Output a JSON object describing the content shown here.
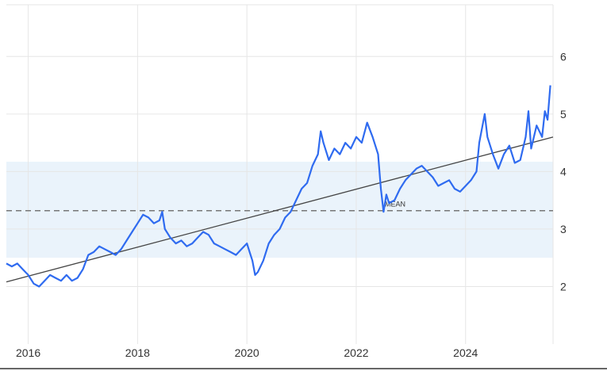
{
  "chart_data": {
    "type": "line",
    "xlabel": "",
    "ylabel": "",
    "x_ticks": [
      "2016",
      "2018",
      "2020",
      "2022",
      "2024"
    ],
    "y_ticks": [
      "2",
      "3",
      "4",
      "5",
      "6"
    ],
    "xlim": [
      2015.6,
      2025.6
    ],
    "ylim": [
      1.0,
      6.9
    ],
    "grid": true,
    "y_axis_position": "right",
    "band": {
      "lower": 2.5,
      "upper": 4.17
    },
    "mean": {
      "label": "MEAN",
      "value": 3.32
    },
    "trend": {
      "start": [
        2015.6,
        2.08
      ],
      "end": [
        2025.6,
        4.6
      ]
    },
    "series": [
      {
        "color": "#2f6bf0",
        "points": [
          [
            2015.6,
            2.4
          ],
          [
            2015.7,
            2.35
          ],
          [
            2015.8,
            2.4
          ],
          [
            2015.9,
            2.3
          ],
          [
            2016.0,
            2.2
          ],
          [
            2016.1,
            2.05
          ],
          [
            2016.2,
            2.0
          ],
          [
            2016.3,
            2.1
          ],
          [
            2016.4,
            2.2
          ],
          [
            2016.5,
            2.15
          ],
          [
            2016.6,
            2.1
          ],
          [
            2016.7,
            2.2
          ],
          [
            2016.8,
            2.1
          ],
          [
            2016.9,
            2.15
          ],
          [
            2017.0,
            2.3
          ],
          [
            2017.1,
            2.55
          ],
          [
            2017.2,
            2.6
          ],
          [
            2017.3,
            2.7
          ],
          [
            2017.4,
            2.65
          ],
          [
            2017.5,
            2.6
          ],
          [
            2017.6,
            2.55
          ],
          [
            2017.7,
            2.65
          ],
          [
            2017.8,
            2.8
          ],
          [
            2017.9,
            2.95
          ],
          [
            2018.0,
            3.1
          ],
          [
            2018.1,
            3.25
          ],
          [
            2018.2,
            3.2
          ],
          [
            2018.3,
            3.1
          ],
          [
            2018.4,
            3.15
          ],
          [
            2018.45,
            3.3
          ],
          [
            2018.5,
            3.0
          ],
          [
            2018.6,
            2.85
          ],
          [
            2018.7,
            2.75
          ],
          [
            2018.8,
            2.8
          ],
          [
            2018.9,
            2.7
          ],
          [
            2019.0,
            2.75
          ],
          [
            2019.1,
            2.85
          ],
          [
            2019.2,
            2.95
          ],
          [
            2019.3,
            2.9
          ],
          [
            2019.4,
            2.75
          ],
          [
            2019.5,
            2.7
          ],
          [
            2019.6,
            2.65
          ],
          [
            2019.7,
            2.6
          ],
          [
            2019.8,
            2.55
          ],
          [
            2019.9,
            2.65
          ],
          [
            2020.0,
            2.75
          ],
          [
            2020.05,
            2.6
          ],
          [
            2020.1,
            2.45
          ],
          [
            2020.15,
            2.2
          ],
          [
            2020.2,
            2.25
          ],
          [
            2020.3,
            2.45
          ],
          [
            2020.4,
            2.75
          ],
          [
            2020.5,
            2.9
          ],
          [
            2020.6,
            3.0
          ],
          [
            2020.7,
            3.2
          ],
          [
            2020.8,
            3.3
          ],
          [
            2020.9,
            3.5
          ],
          [
            2021.0,
            3.7
          ],
          [
            2021.1,
            3.8
          ],
          [
            2021.2,
            4.1
          ],
          [
            2021.3,
            4.3
          ],
          [
            2021.35,
            4.7
          ],
          [
            2021.4,
            4.5
          ],
          [
            2021.5,
            4.2
          ],
          [
            2021.6,
            4.4
          ],
          [
            2021.7,
            4.3
          ],
          [
            2021.8,
            4.5
          ],
          [
            2021.9,
            4.4
          ],
          [
            2022.0,
            4.6
          ],
          [
            2022.1,
            4.5
          ],
          [
            2022.2,
            4.85
          ],
          [
            2022.3,
            4.6
          ],
          [
            2022.4,
            4.3
          ],
          [
            2022.45,
            3.7
          ],
          [
            2022.5,
            3.3
          ],
          [
            2022.55,
            3.6
          ],
          [
            2022.6,
            3.45
          ],
          [
            2022.7,
            3.5
          ],
          [
            2022.8,
            3.7
          ],
          [
            2022.9,
            3.85
          ],
          [
            2023.0,
            3.95
          ],
          [
            2023.1,
            4.05
          ],
          [
            2023.2,
            4.1
          ],
          [
            2023.3,
            4.0
          ],
          [
            2023.4,
            3.9
          ],
          [
            2023.5,
            3.75
          ],
          [
            2023.6,
            3.8
          ],
          [
            2023.7,
            3.85
          ],
          [
            2023.8,
            3.7
          ],
          [
            2023.9,
            3.65
          ],
          [
            2024.0,
            3.75
          ],
          [
            2024.1,
            3.85
          ],
          [
            2024.2,
            4.0
          ],
          [
            2024.25,
            4.5
          ],
          [
            2024.35,
            5.0
          ],
          [
            2024.4,
            4.6
          ],
          [
            2024.5,
            4.3
          ],
          [
            2024.6,
            4.05
          ],
          [
            2024.7,
            4.3
          ],
          [
            2024.8,
            4.45
          ],
          [
            2024.9,
            4.15
          ],
          [
            2025.0,
            4.2
          ],
          [
            2025.1,
            4.6
          ],
          [
            2025.15,
            5.05
          ],
          [
            2025.2,
            4.4
          ],
          [
            2025.3,
            4.8
          ],
          [
            2025.4,
            4.6
          ],
          [
            2025.45,
            5.05
          ],
          [
            2025.5,
            4.9
          ],
          [
            2025.55,
            5.5
          ]
        ]
      }
    ]
  }
}
